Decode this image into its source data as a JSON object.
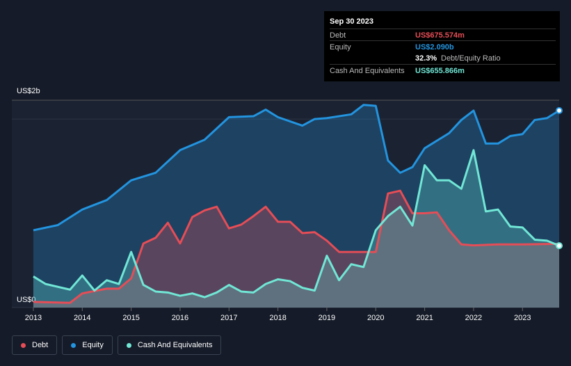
{
  "chart_data": {
    "type": "area",
    "yticks": [
      {
        "value": 0,
        "label": "US$0"
      },
      {
        "value": 2,
        "label": "US$2b"
      }
    ],
    "ylim": [
      0,
      2.2
    ],
    "xlim": [
      2012.56,
      2023.75
    ],
    "xticks": [
      2013,
      2014,
      2015,
      2016,
      2017,
      2018,
      2019,
      2020,
      2021,
      2022,
      2023
    ],
    "series": [
      {
        "name": "Equity",
        "color": "#2394df",
        "x": [
          2013,
          2013.5,
          2014,
          2014.5,
          2015,
          2015.5,
          2016,
          2016.5,
          2017,
          2017.5,
          2017.75,
          2018,
          2018.5,
          2018.75,
          2019,
          2019.5,
          2019.75,
          2020,
          2020.25,
          2020.5,
          2020.75,
          2021,
          2021.5,
          2021.75,
          2022,
          2022.25,
          2022.5,
          2022.75,
          2023,
          2023.25,
          2023.5,
          2023.75
        ],
        "values": [
          0.82,
          0.875,
          1.04,
          1.14,
          1.35,
          1.43,
          1.67,
          1.78,
          2.02,
          2.03,
          2.1,
          2.02,
          1.93,
          2.0,
          2.01,
          2.05,
          2.15,
          2.14,
          1.56,
          1.43,
          1.49,
          1.69,
          1.85,
          1.99,
          2.09,
          1.74,
          1.74,
          1.82,
          1.84,
          1.99,
          2.01,
          2.09
        ]
      },
      {
        "name": "Debt",
        "color": "#e64d56",
        "x": [
          2013,
          2013.75,
          2014,
          2014.5,
          2014.75,
          2015,
          2015.25,
          2015.5,
          2015.75,
          2016,
          2016.25,
          2016.5,
          2016.75,
          2017,
          2017.25,
          2017.5,
          2017.75,
          2018,
          2018.25,
          2018.5,
          2018.75,
          2019,
          2019.25,
          2019.5,
          2020,
          2020.25,
          2020.5,
          2020.75,
          2021,
          2021.25,
          2021.5,
          2021.75,
          2022,
          2022.5,
          2023,
          2023.75
        ],
        "values": [
          0.06,
          0.05,
          0.15,
          0.2,
          0.2,
          0.31,
          0.68,
          0.74,
          0.9,
          0.68,
          0.96,
          1.03,
          1.07,
          0.84,
          0.88,
          0.97,
          1.07,
          0.91,
          0.91,
          0.79,
          0.8,
          0.71,
          0.59,
          0.59,
          0.59,
          1.21,
          1.24,
          1.0,
          1.0,
          1.01,
          0.82,
          0.67,
          0.66,
          0.67,
          0.67,
          0.676
        ]
      },
      {
        "name": "Cash And Equivalents",
        "color": "#71e7d6",
        "x": [
          2013,
          2013.25,
          2013.5,
          2013.75,
          2014,
          2014.25,
          2014.5,
          2014.75,
          2015,
          2015.25,
          2015.5,
          2015.75,
          2016,
          2016.25,
          2016.5,
          2016.75,
          2017,
          2017.25,
          2017.5,
          2017.75,
          2018,
          2018.25,
          2018.5,
          2018.75,
          2019,
          2019.25,
          2019.5,
          2019.75,
          2020,
          2020.25,
          2020.5,
          2020.75,
          2021,
          2021.25,
          2021.5,
          2021.75,
          2022,
          2022.25,
          2022.5,
          2022.75,
          2023,
          2023.25,
          2023.5,
          2023.75
        ],
        "values": [
          0.33,
          0.25,
          0.22,
          0.19,
          0.34,
          0.18,
          0.29,
          0.25,
          0.59,
          0.24,
          0.17,
          0.16,
          0.125,
          0.15,
          0.11,
          0.16,
          0.24,
          0.17,
          0.16,
          0.25,
          0.3,
          0.28,
          0.21,
          0.18,
          0.55,
          0.29,
          0.46,
          0.43,
          0.82,
          0.97,
          1.07,
          0.87,
          1.51,
          1.35,
          1.35,
          1.26,
          1.67,
          1.02,
          1.04,
          0.86,
          0.85,
          0.72,
          0.71,
          0.656
        ]
      }
    ],
    "tooltip": {
      "date": "Sep 30 2023",
      "rows": [
        {
          "name": "Debt",
          "value": "US$675.574m"
        },
        {
          "name": "Equity",
          "value": "US$2.090b"
        },
        {
          "ratio": "32.3%",
          "label": "Debt/Equity Ratio"
        },
        {
          "name": "Cash And Equivalents",
          "value": "US$655.866m"
        }
      ]
    }
  }
}
